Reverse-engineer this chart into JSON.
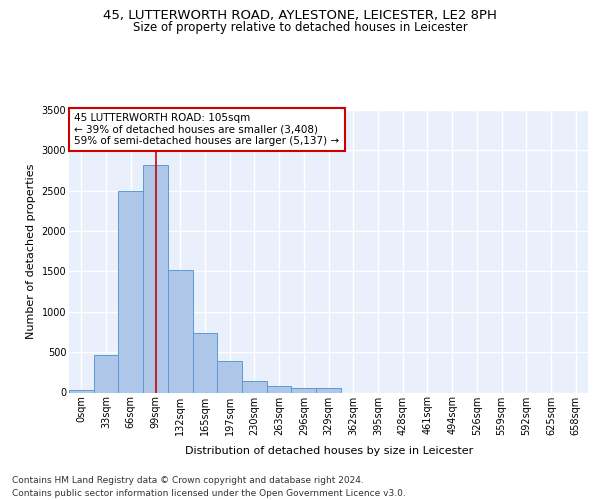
{
  "title_line1": "45, LUTTERWORTH ROAD, AYLESTONE, LEICESTER, LE2 8PH",
  "title_line2": "Size of property relative to detached houses in Leicester",
  "xlabel": "Distribution of detached houses by size in Leicester",
  "ylabel": "Number of detached properties",
  "bin_labels": [
    "0sqm",
    "33sqm",
    "66sqm",
    "99sqm",
    "132sqm",
    "165sqm",
    "197sqm",
    "230sqm",
    "263sqm",
    "296sqm",
    "329sqm",
    "362sqm",
    "395sqm",
    "428sqm",
    "461sqm",
    "494sqm",
    "526sqm",
    "559sqm",
    "592sqm",
    "625sqm",
    "658sqm"
  ],
  "bar_values": [
    30,
    470,
    2500,
    2820,
    1520,
    740,
    390,
    140,
    75,
    55,
    55,
    0,
    0,
    0,
    0,
    0,
    0,
    0,
    0,
    0,
    0
  ],
  "bar_color": "#aec6e8",
  "bar_edge_color": "#5b9bd5",
  "vline_x": 3.0,
  "vline_color": "#cc0000",
  "annotation_text": "45 LUTTERWORTH ROAD: 105sqm\n← 39% of detached houses are smaller (3,408)\n59% of semi-detached houses are larger (5,137) →",
  "annotation_box_color": "#cc0000",
  "ylim": [
    0,
    3500
  ],
  "yticks": [
    0,
    500,
    1000,
    1500,
    2000,
    2500,
    3000,
    3500
  ],
  "background_color": "#eaf0fb",
  "grid_color": "#ffffff",
  "footer_line1": "Contains HM Land Registry data © Crown copyright and database right 2024.",
  "footer_line2": "Contains public sector information licensed under the Open Government Licence v3.0.",
  "title_fontsize": 9.5,
  "subtitle_fontsize": 8.5,
  "axis_label_fontsize": 8,
  "tick_fontsize": 7,
  "annotation_fontsize": 7.5,
  "footer_fontsize": 6.5
}
